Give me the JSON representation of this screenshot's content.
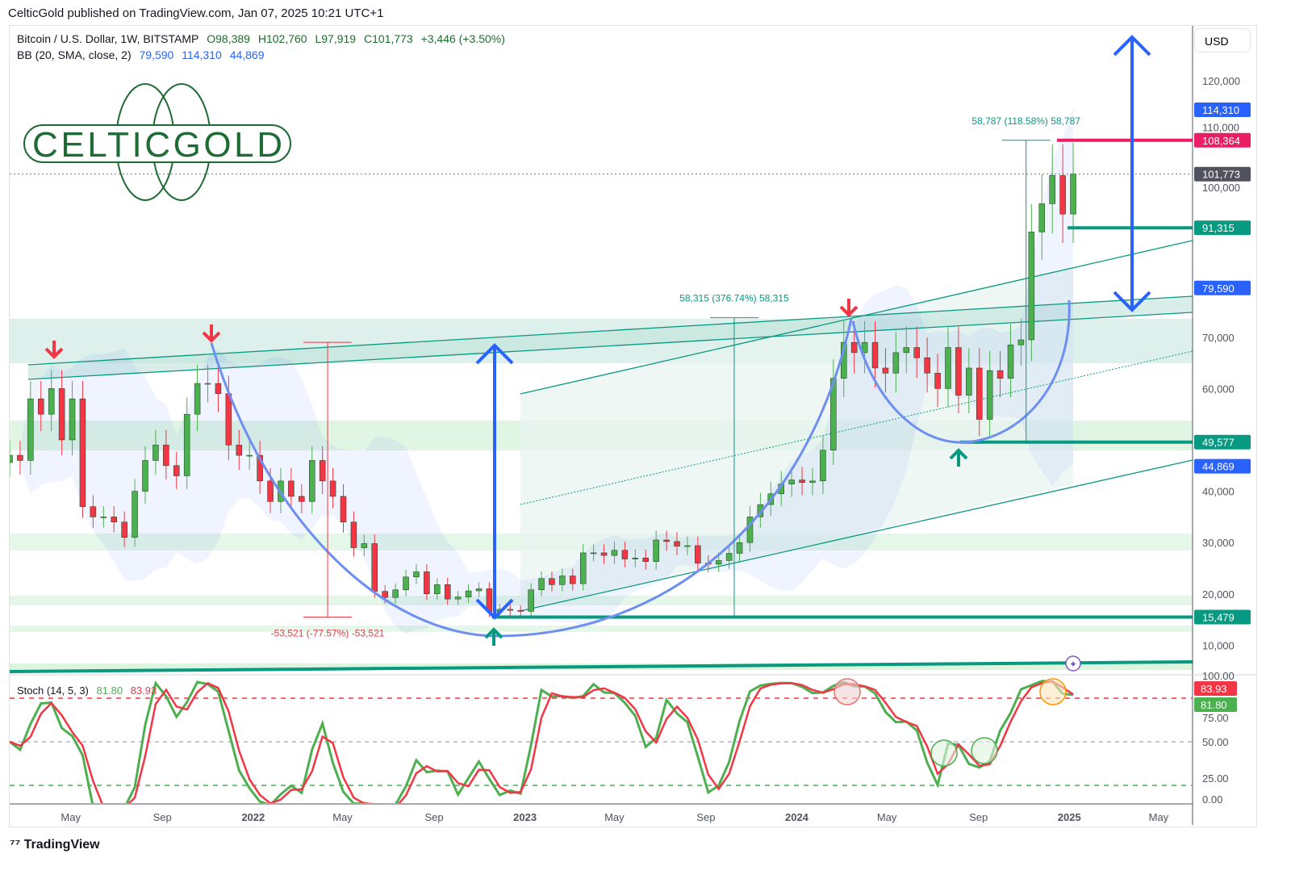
{
  "published": "CelticGold published on TradingView.com, Jan 07, 2025 10:21 UTC+1",
  "legend": {
    "symbol": "Bitcoin / U.S. Dollar, 1W, BITSTAMP",
    "open": "O98,389",
    "high": "H102,760",
    "low": "L97,919",
    "close": "C101,773",
    "change": "+3,446 (+3.50%)",
    "bb_label": "BB (20, SMA, close, 2)",
    "bb_basis": "79,590",
    "bb_upper": "114,310",
    "bb_lower": "44,869"
  },
  "stoch_legend": {
    "label": "Stoch (14, 5, 3)",
    "k": "81.80",
    "d": "83.93"
  },
  "currency": "USD",
  "logo_text": "CELTICGOLD",
  "footer": "TradingView",
  "colors": {
    "up": "#4caf50",
    "down": "#f23645",
    "teal": "#089981",
    "blue": "#2962ff",
    "arc": "#6e8ff0",
    "red_line": "#e91e63"
  },
  "chart_data": {
    "type": "candlestick",
    "interval": "1W (sampled every 2 weeks)",
    "start": "2021-02-08",
    "closes": [
      47000,
      46000,
      58000,
      55000,
      60000,
      50000,
      58000,
      37000,
      35000,
      35000,
      34000,
      31000,
      40000,
      46000,
      49000,
      45000,
      43000,
      55000,
      61000,
      61000,
      59000,
      49000,
      47000,
      47000,
      42000,
      38000,
      42000,
      39000,
      38000,
      46000,
      42000,
      39000,
      34000,
      29000,
      29800,
      20500,
      19300,
      20800,
      23300,
      24300,
      20000,
      21800,
      19000,
      19400,
      20600,
      21000,
      16500,
      17000,
      16800,
      16600,
      20800,
      23000,
      21800,
      23500,
      22000,
      28000,
      28000,
      27500,
      28500,
      26800,
      27000,
      26300,
      30500,
      30200,
      29300,
      29400,
      26000,
      25800,
      26500,
      27900,
      30000,
      35000,
      37400,
      39500,
      41400,
      42200,
      41700,
      42000,
      48000,
      62000,
      69000,
      67000,
      69000,
      64000,
      63000,
      67000,
      68000,
      66000,
      63000,
      60000,
      68000,
      58700,
      64000,
      54000,
      63500,
      62000,
      68500,
      69500,
      90500,
      96000,
      101500,
      94000,
      101773
    ],
    "x_ticks": [
      {
        "label": "May",
        "date": "2021-05-01"
      },
      {
        "label": "Sep",
        "date": "2021-09-01"
      },
      {
        "label": "2022",
        "date": "2022-01-01",
        "bold": true
      },
      {
        "label": "May",
        "date": "2022-05-01"
      },
      {
        "label": "Sep",
        "date": "2022-09-01"
      },
      {
        "label": "2023",
        "date": "2023-01-01",
        "bold": true
      },
      {
        "label": "May",
        "date": "2023-05-01"
      },
      {
        "label": "Sep",
        "date": "2023-09-01"
      },
      {
        "label": "2024",
        "date": "2024-01-01",
        "bold": true
      },
      {
        "label": "May",
        "date": "2024-05-01"
      },
      {
        "label": "Sep",
        "date": "2024-09-01"
      },
      {
        "label": "2025",
        "date": "2025-01-01",
        "bold": true
      },
      {
        "label": "May",
        "date": "2025-05-01"
      }
    ],
    "y_ticks": [
      "10,000",
      "20,000",
      "30,000",
      "40,000",
      "60,000",
      "70,000",
      "100,000",
      "110,000",
      "120,000"
    ],
    "y_tick_values": [
      10000,
      20000,
      30000,
      40000,
      60000,
      70000,
      100000,
      110000,
      120000
    ],
    "price_labels": [
      {
        "text": "114,310",
        "value": 114310,
        "color": "#2962ff"
      },
      {
        "text": "108,364",
        "value": 108364,
        "color": "#e91e63"
      },
      {
        "text": "101,773",
        "value": 101773,
        "color": "#50535e"
      },
      {
        "text": "91,315",
        "value": 91315,
        "color": "#089981"
      },
      {
        "text": "79,590",
        "value": 79590,
        "color": "#2962ff"
      },
      {
        "text": "49,577",
        "value": 49577,
        "color": "#089981"
      },
      {
        "text": "44,869",
        "value": 44869,
        "color": "#2962ff"
      },
      {
        "text": "15,479",
        "value": 15479,
        "color": "#089981"
      }
    ],
    "measurements": [
      {
        "text": "-53,521 (-77.57%) -53,521",
        "from": 69000,
        "to": 15479,
        "date": "2022-04-11",
        "color": "#f23645"
      },
      {
        "text": "58,315 (376.74%) 58,315",
        "from": 15479,
        "to": 73794,
        "date": "2023-10-09",
        "color": "#089981"
      },
      {
        "text": "58,787 (118.58%) 58,787",
        "from": 49577,
        "to": 108364,
        "date": "2024-11-04",
        "color": "#089981"
      }
    ],
    "stoch": {
      "y_ticks": [
        "0.00",
        "25.00",
        "50.00",
        "75.00",
        "100.00"
      ],
      "y_tick_values": [
        0,
        25,
        50,
        75,
        100
      ],
      "k_last": 81.8,
      "d_last": 83.93,
      "overbought": 80,
      "oversold": 20
    },
    "stoch_labels": [
      {
        "text": "83.93",
        "value": 83.93,
        "color": "#f23645"
      },
      {
        "text": "81.80",
        "value": 81.8,
        "color": "#4caf50"
      }
    ]
  }
}
